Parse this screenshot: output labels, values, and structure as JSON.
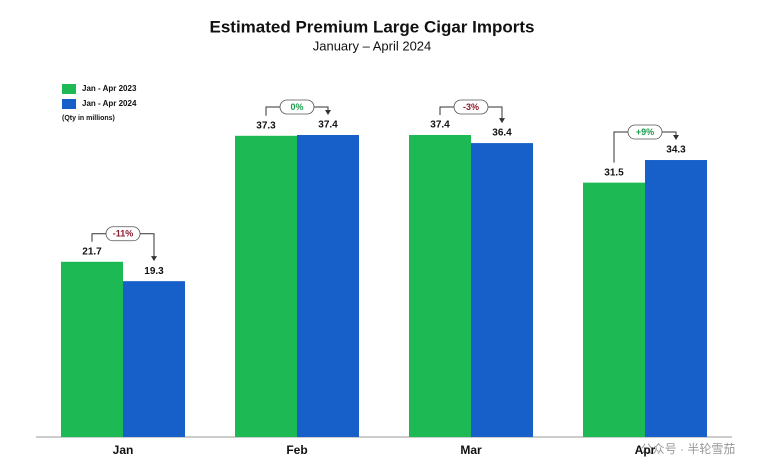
{
  "chart_data": {
    "type": "bar",
    "title": "Estimated Premium Large Cigar Imports",
    "subtitle": "January – April 2024",
    "note": "(Qty in millions)",
    "categories": [
      "Jan",
      "Feb",
      "Mar",
      "Apr"
    ],
    "series": [
      {
        "name": "Jan - Apr 2023",
        "color": "#1db954",
        "values": [
          21.7,
          37.3,
          37.4,
          31.5
        ]
      },
      {
        "name": "Jan - Apr 2024",
        "color": "#1760c9",
        "values": [
          19.3,
          37.4,
          36.4,
          34.3
        ]
      }
    ],
    "annotations": [
      {
        "text": "-11%",
        "color": "#8b1a2b"
      },
      {
        "text": "0%",
        "color": "#1a9a4a"
      },
      {
        "text": "-3%",
        "color": "#8b1a2b"
      },
      {
        "text": "+9%",
        "color": "#1a9a4a"
      }
    ],
    "legend": "top-left",
    "watermark": "公众号 · 半轮雪茄"
  }
}
